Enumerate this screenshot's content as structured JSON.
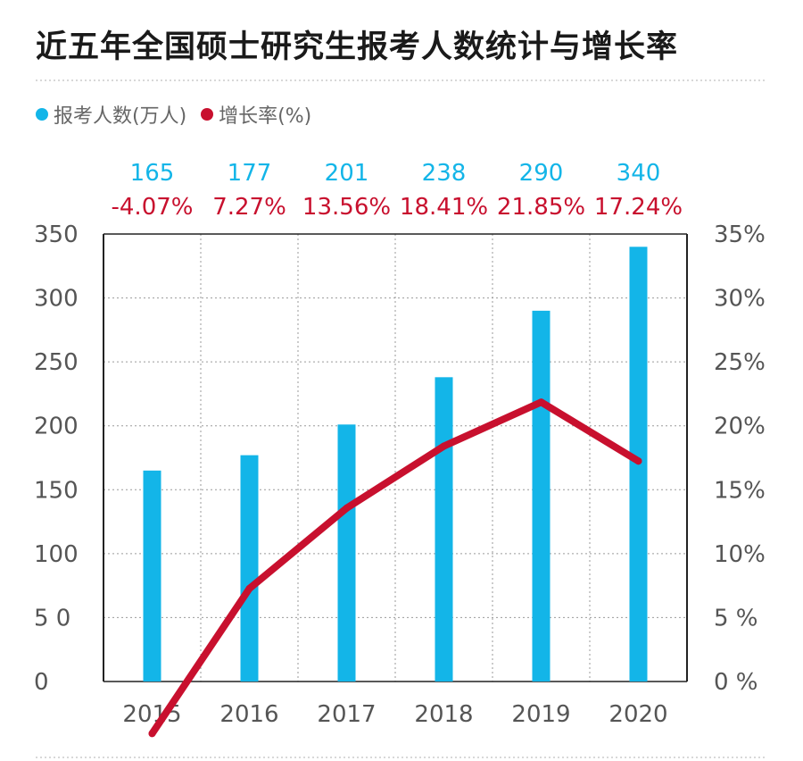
{
  "title": "近五年全国硕士研究生报考人数统计与增长率",
  "legend": {
    "applicants_label": "报考人数(万人)",
    "growth_label": "增长率(%)"
  },
  "colors": {
    "bar": "#13b5e8",
    "line": "#c8102e",
    "title": "#1a1a1a",
    "axis_text": "#555555",
    "grid": "#9a9a9a"
  },
  "chart_data": {
    "type": "bar+line",
    "categories": [
      "2015",
      "2016",
      "2017",
      "2018",
      "2019",
      "2020"
    ],
    "series": [
      {
        "name": "报考人数(万人)",
        "type": "bar",
        "axis": "left",
        "values": [
          165,
          177,
          201,
          238,
          290,
          340
        ],
        "labels": [
          "165",
          "177",
          "201",
          "238",
          "290",
          "340"
        ]
      },
      {
        "name": "增长率(%)",
        "type": "line",
        "axis": "right",
        "values": [
          -4.07,
          7.27,
          13.56,
          18.41,
          21.85,
          17.24
        ],
        "labels": [
          "-4.07%",
          "7.27%",
          "13.56%",
          "18.41%",
          "21.85%",
          "17.24%"
        ]
      }
    ],
    "y_left": {
      "range": [
        0,
        350
      ],
      "ticks": [
        "0",
        "5 0",
        "100",
        "150",
        "200",
        "250",
        "300",
        "350"
      ]
    },
    "y_right": {
      "range": [
        0,
        35
      ],
      "ticks": [
        "0 %",
        "5 %",
        "10%",
        "15%",
        "20%",
        "25%",
        "30%",
        "35%"
      ]
    },
    "grid": true,
    "legend_position": "top-left"
  }
}
